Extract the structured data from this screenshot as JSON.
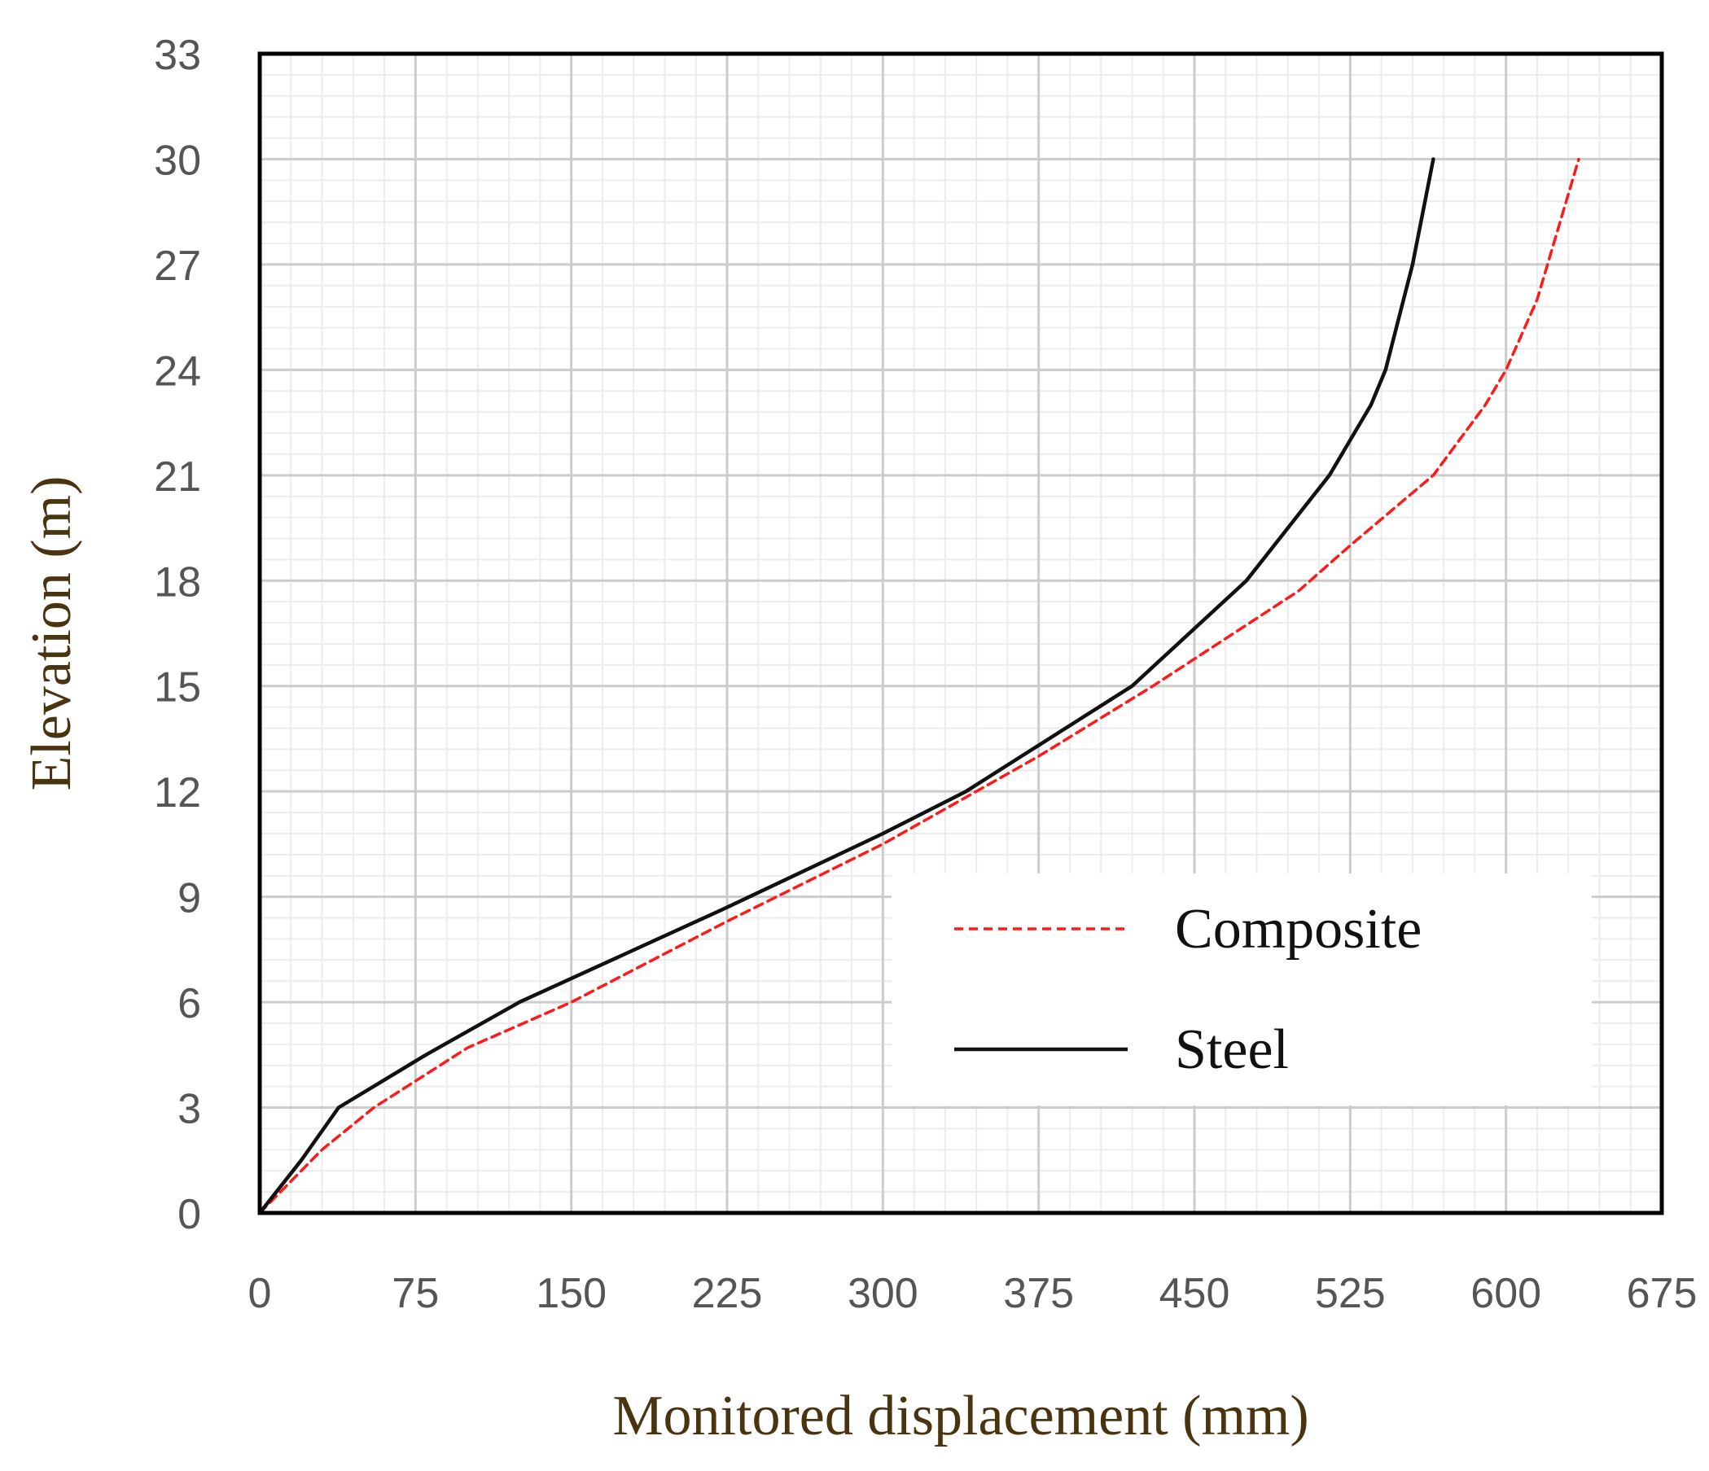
{
  "chart_data": {
    "type": "line",
    "title": "",
    "xlabel": "Monitored displacement (mm)",
    "ylabel": "Elevation (m)",
    "xlim": [
      0,
      675
    ],
    "ylim": [
      0,
      33
    ],
    "xticks": [
      0,
      75,
      150,
      225,
      300,
      375,
      450,
      525,
      600,
      675
    ],
    "yticks": [
      0,
      3,
      6,
      9,
      12,
      15,
      18,
      21,
      24,
      27,
      30,
      33
    ],
    "x_minor_step": 15,
    "y_minor_step": 0.6,
    "grid": true,
    "legend_position": "right-center",
    "colors": {
      "axis_title": "#4a3410",
      "major_grid": "#cccccc",
      "minor_grid": "#ececec",
      "frame": "#000000"
    },
    "series": [
      {
        "name": "Composite",
        "color": "#ff1a1a",
        "style": "dashed",
        "points": [
          [
            0,
            0
          ],
          [
            30,
            1.8
          ],
          [
            55,
            3.0
          ],
          [
            100,
            4.7
          ],
          [
            150,
            6.0
          ],
          [
            225,
            8.3
          ],
          [
            300,
            10.5
          ],
          [
            375,
            13.0
          ],
          [
            430,
            15.0
          ],
          [
            500,
            17.7
          ],
          [
            525,
            19.0
          ],
          [
            565,
            21.0
          ],
          [
            590,
            23.0
          ],
          [
            600,
            24.0
          ],
          [
            615,
            26.0
          ],
          [
            630,
            29.0
          ],
          [
            635,
            30.0
          ]
        ]
      },
      {
        "name": "Steel",
        "color": "#111111",
        "style": "solid",
        "points": [
          [
            0,
            0
          ],
          [
            20,
            1.5
          ],
          [
            38,
            3.0
          ],
          [
            80,
            4.5
          ],
          [
            125,
            6.0
          ],
          [
            225,
            8.7
          ],
          [
            300,
            10.8
          ],
          [
            340,
            12.0
          ],
          [
            420,
            15.0
          ],
          [
            475,
            18.0
          ],
          [
            515,
            21.0
          ],
          [
            535,
            23.0
          ],
          [
            542,
            24.0
          ],
          [
            555,
            27.0
          ],
          [
            565,
            30.0
          ]
        ]
      }
    ]
  }
}
